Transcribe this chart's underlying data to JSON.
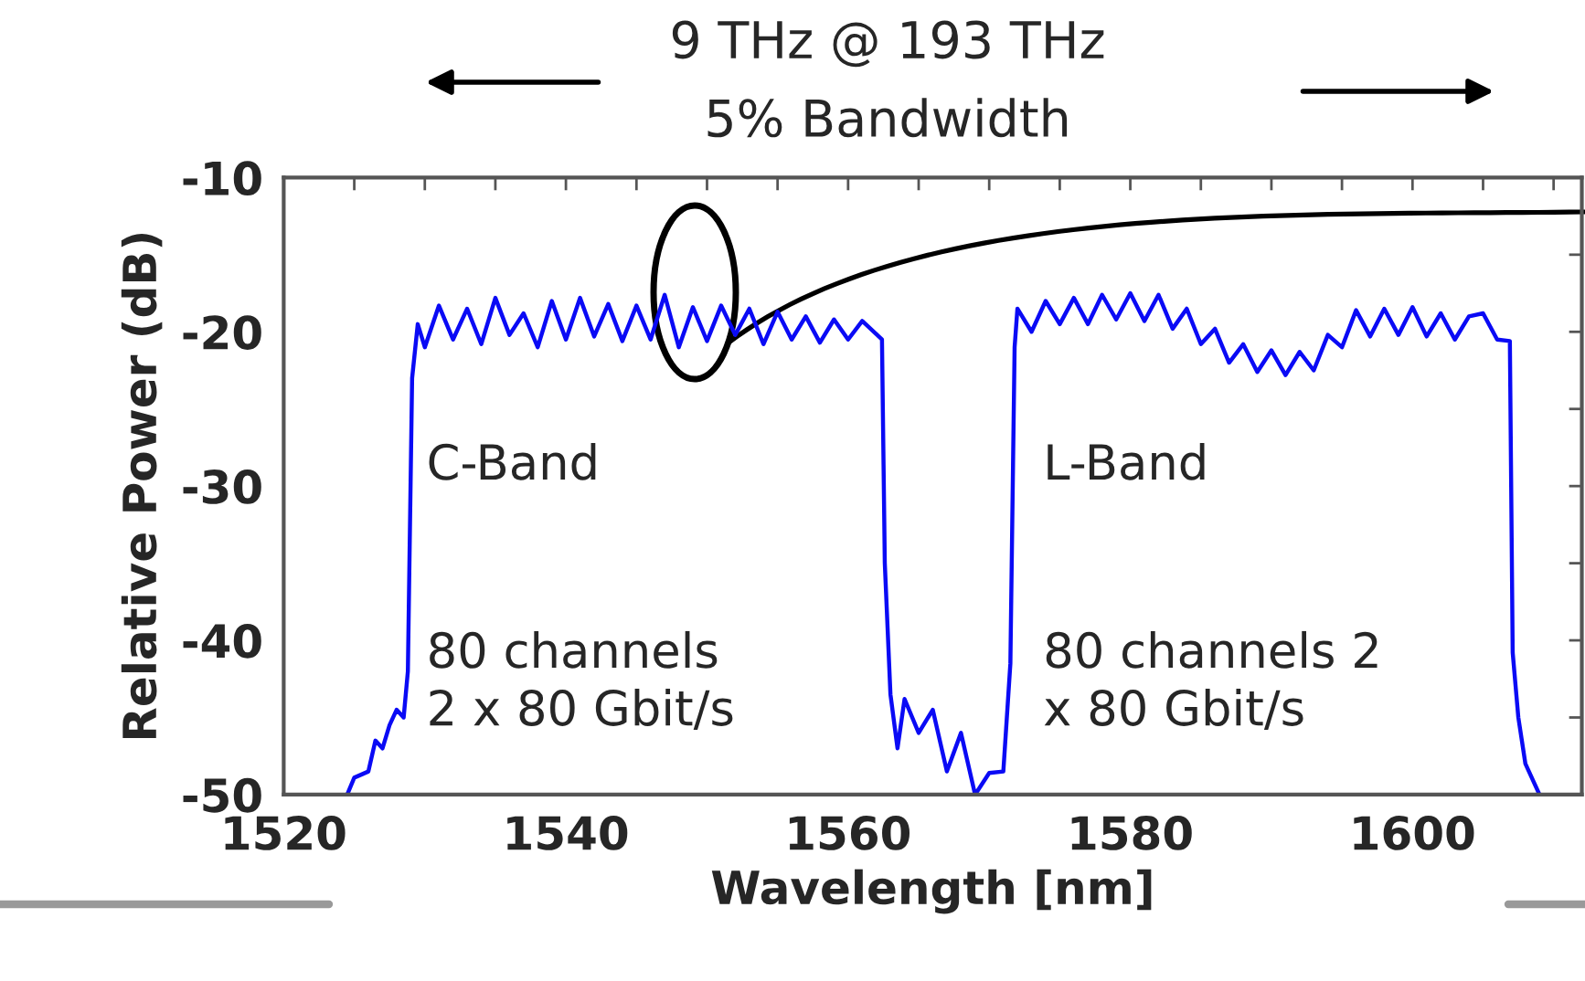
{
  "chart_data": {
    "type": "line",
    "title": "9 THz @ 193 THz",
    "subtitle": "5% Bandwidth",
    "xlabel": "Wavelength [nm]",
    "ylabel": "Relative Power (dB)",
    "xlim": [
      1520,
      1612
    ],
    "ylim": [
      -50,
      -10
    ],
    "xticks": [
      1520,
      {
        "value": 1525,
        "label": null
      },
      {
        "value": 1530,
        "label": null
      },
      {
        "value": 1535,
        "label": null
      },
      1540,
      {
        "value": 1545,
        "label": null
      },
      {
        "value": 1550,
        "label": null
      },
      {
        "value": 1555,
        "label": null
      },
      1560,
      {
        "value": 1565,
        "label": null
      },
      {
        "value": 1570,
        "label": null
      },
      {
        "value": 1575,
        "label": null
      },
      1580,
      {
        "value": 1585,
        "label": null
      },
      {
        "value": 1590,
        "label": null
      },
      {
        "value": 1595,
        "label": null
      },
      1600,
      {
        "value": 1605,
        "label": null
      },
      {
        "value": 1610,
        "label": null
      }
    ],
    "yticks": [
      -50,
      {
        "value": -45,
        "label": null
      },
      -40,
      {
        "value": -35,
        "label": null
      },
      -30,
      {
        "value": -25,
        "label": null
      },
      -20,
      {
        "value": -15,
        "label": null
      },
      -10
    ],
    "grid": false,
    "legend": false,
    "line_style": "solid",
    "marker": "none",
    "annotations": [
      "C-Band",
      "80 channels\n2 x 80 Gbit/s",
      "L-Band",
      "80 channels 2\nx 80 Gbit/s"
    ],
    "series": [
      {
        "color": "#0a0af5",
        "x": [
          1524.5,
          1525,
          1526,
          1526.5,
          1527,
          1527.5,
          1528,
          1528.5,
          1528.8,
          1529.1,
          1529.5,
          1530,
          1531,
          1532,
          1533,
          1534,
          1535,
          1536,
          1537,
          1538,
          1539,
          1540,
          1541,
          1542,
          1543,
          1544,
          1545,
          1546,
          1547,
          1548,
          1549,
          1550,
          1551,
          1552,
          1553,
          1554,
          1555,
          1556,
          1557,
          1558,
          1559,
          1560,
          1561,
          1562.4,
          1562.6,
          1563,
          1563.5,
          1564,
          1565,
          1566,
          1567,
          1568,
          1569,
          1570,
          1571,
          1571.5,
          1571.8,
          1572,
          1573,
          1574,
          1575,
          1576,
          1577,
          1578,
          1579,
          1580,
          1581,
          1582,
          1583,
          1584,
          1585,
          1586,
          1587,
          1588,
          1589,
          1590,
          1591,
          1592,
          1593,
          1594,
          1595,
          1596,
          1597,
          1598,
          1599,
          1600,
          1601,
          1602,
          1603,
          1604,
          1605,
          1606,
          1606.9,
          1607.1,
          1607.5,
          1608,
          1609
        ],
        "values": [
          -50,
          -48.9,
          -48.5,
          -46.5,
          -47,
          -45.5,
          -44.5,
          -45,
          -42,
          -23,
          -19.5,
          -21,
          -18.3,
          -20.5,
          -18.5,
          -20.8,
          -17.8,
          -20.2,
          -18.8,
          -21,
          -18,
          -20.5,
          -17.8,
          -20.3,
          -18.2,
          -20.6,
          -18.3,
          -20.5,
          -17.6,
          -21,
          -18.4,
          -20.6,
          -18.3,
          -20.2,
          -18.5,
          -20.8,
          -18.7,
          -20.5,
          -19,
          -20.7,
          -19.2,
          -20.5,
          -19.3,
          -20.5,
          -35,
          -43.5,
          -47,
          -43.8,
          -46,
          -44.5,
          -48.5,
          -46,
          -50,
          -48.6,
          -48.5,
          -41.5,
          -21,
          -18.5,
          -20,
          -18,
          -19.5,
          -17.8,
          -19.5,
          -17.6,
          -19.2,
          -17.5,
          -19.3,
          -17.6,
          -19.8,
          -18.5,
          -20.8,
          -19.8,
          -22,
          -20.8,
          -22.6,
          -21.2,
          -22.8,
          -21.3,
          -22.5,
          -20.2,
          -21,
          -18.6,
          -20.3,
          -18.5,
          -20.2,
          -18.4,
          -20.3,
          -18.8,
          -20.5,
          -19,
          -18.8,
          -20.5,
          -20.6,
          -40.8,
          -45,
          -48,
          -50
        ]
      }
    ]
  }
}
